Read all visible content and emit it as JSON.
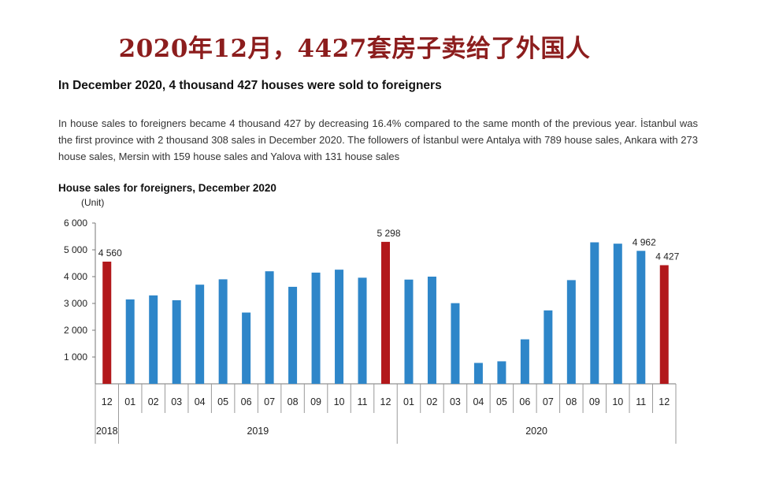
{
  "banner_title": "2020年12月，4427套房子卖给了外国人",
  "headline": "In December 2020, 4 thousand 427 houses were sold to foreigners",
  "paragraph": "In house sales to foreigners became 4 thousand 427 by decreasing 16.4% compared to the same month of the previous year. İstanbul was the first province with 2 thousand 308 sales in December 2020. The followers of İstanbul were Antalya with 789 house sales, Ankara with 273 house sales, Mersin with 159 house sales and Yalova with 131 house sales",
  "colors": {
    "normal_bar": "#2e86c9",
    "highlight_bar": "#b2181b",
    "banner_text": "#8c1d1d"
  },
  "chart_data": {
    "type": "bar",
    "title": "House sales for foreigners, December 2020",
    "unit_label": "(Unit)",
    "ylim": [
      0,
      6000
    ],
    "yticks": [
      1000,
      2000,
      3000,
      4000,
      5000,
      6000
    ],
    "ytick_labels": [
      "1 000",
      "2 000",
      "3 000",
      "4 000",
      "5 000",
      "6 000"
    ],
    "grid": false,
    "categories": [
      "12",
      "01",
      "02",
      "03",
      "04",
      "05",
      "06",
      "07",
      "08",
      "09",
      "10",
      "11",
      "12",
      "01",
      "02",
      "03",
      "04",
      "05",
      "06",
      "07",
      "08",
      "09",
      "10",
      "11",
      "12"
    ],
    "values": [
      4560,
      3150,
      3300,
      3120,
      3700,
      3900,
      2660,
      4200,
      3620,
      4150,
      4260,
      3960,
      5298,
      3890,
      4000,
      3010,
      780,
      840,
      1660,
      2740,
      3870,
      5280,
      5230,
      4962,
      4427
    ],
    "highlight_indices": [
      0,
      12,
      24
    ],
    "data_labels": [
      {
        "index": 0,
        "text": "4 560"
      },
      {
        "index": 12,
        "text": "5 298"
      },
      {
        "index": 23,
        "text": "4 962"
      },
      {
        "index": 24,
        "text": "4 427"
      }
    ],
    "year_groups": [
      {
        "label": "2018",
        "start": 0,
        "end": 0
      },
      {
        "label": "2019",
        "start": 1,
        "end": 12
      },
      {
        "label": "2020",
        "start": 13,
        "end": 24
      }
    ]
  }
}
